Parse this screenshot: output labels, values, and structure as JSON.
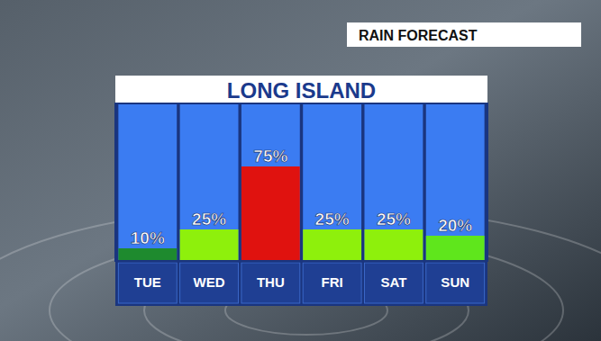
{
  "chart_data": {
    "type": "bar",
    "title": "LONG ISLAND",
    "subtitle": "RAIN FORECAST",
    "categories": [
      "TUE",
      "WED",
      "THU",
      "FRI",
      "SAT",
      "SUN"
    ],
    "values": [
      10,
      25,
      75,
      25,
      25,
      20
    ],
    "value_labels": [
      "10%",
      "25%",
      "75%",
      "25%",
      "25%",
      "20%"
    ],
    "colors": [
      "#1e8a2e",
      "#8ef00c",
      "#e0120f",
      "#8ef00c",
      "#8ef00c",
      "#5fe61c"
    ],
    "ylim": [
      0,
      125
    ],
    "yticks": [],
    "data_labels": true,
    "tick_labels": "x"
  }
}
